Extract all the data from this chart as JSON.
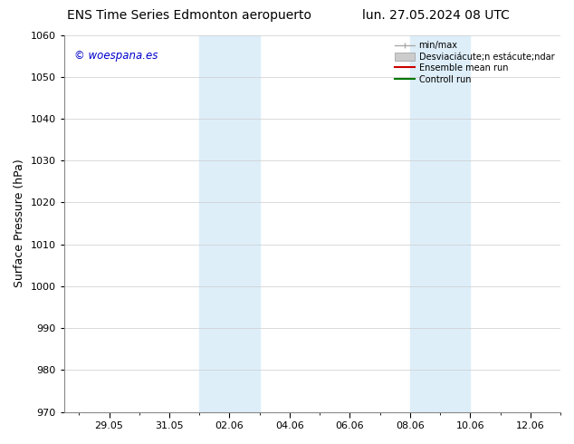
{
  "title_left": "ENS Time Series Edmonton aeropuerto",
  "title_right": "lun. 27.05.2024 08 UTC",
  "ylabel": "Surface Pressure (hPa)",
  "ylim": [
    970,
    1060
  ],
  "yticks": [
    970,
    980,
    990,
    1000,
    1010,
    1020,
    1030,
    1040,
    1050,
    1060
  ],
  "xtick_labels": [
    "29.05",
    "31.05",
    "02.06",
    "04.06",
    "06.06",
    "08.06",
    "10.06",
    "12.06"
  ],
  "xtick_positions_days": [
    2,
    4,
    6,
    8,
    10,
    12,
    14,
    16
  ],
  "xlim_min": 0.5,
  "xlim_max": 17.0,
  "shaded_bands": [
    {
      "x_start_day": 5.0,
      "x_end_day": 7.0
    },
    {
      "x_start_day": 12.0,
      "x_end_day": 14.0
    }
  ],
  "shaded_color": "#ddeef9",
  "watermark_text": "© woespana.es",
  "watermark_color": "#0000cc",
  "bg_color": "#ffffff",
  "grid_color": "#cccccc",
  "title_fontsize": 10,
  "tick_fontsize": 8,
  "ylabel_fontsize": 9,
  "legend_color_minmax": "#aaaaaa",
  "legend_color_std": "#cccccc",
  "legend_color_ensemble": "#cc0000",
  "legend_color_control": "#007700"
}
